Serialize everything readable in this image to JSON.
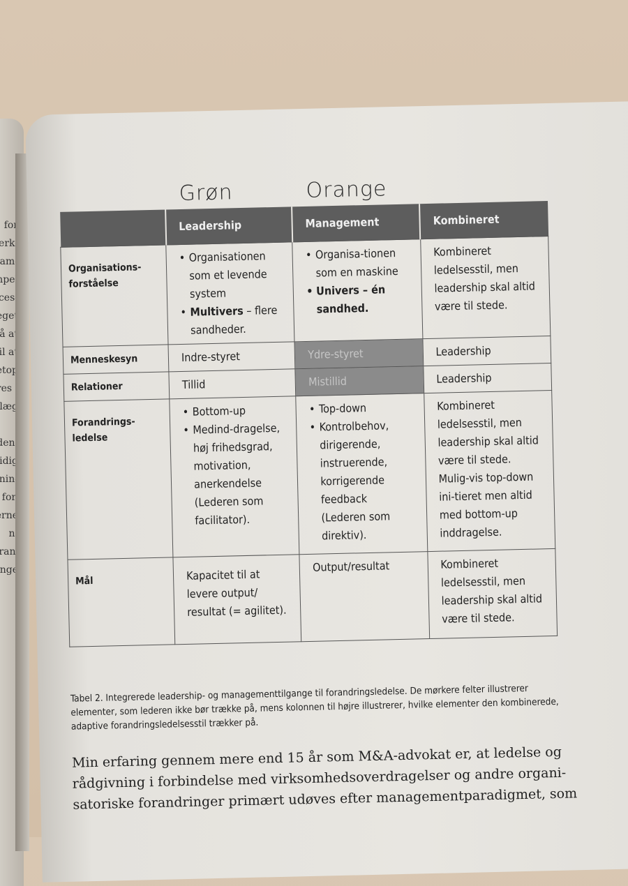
{
  "left_page_fragments": [
    "for",
    "erk-",
    "am-",
    "npel",
    "ces-",
    "eget",
    "på at",
    "il at",
    "etop",
    "res i",
    "olæg",
    "",
    "den.",
    "tidig",
    "nin-",
    "t for,",
    "erne",
    "n.",
    "oran-",
    "ange"
  ],
  "handwriting": {
    "col1": "Grøn",
    "col2": "Orange"
  },
  "table": {
    "headers": [
      "",
      "Leadership",
      "Management",
      "Kombineret"
    ],
    "rows": [
      {
        "label": "Organisations-forståelse",
        "leadership": [
          "Organisationen som et levende system",
          "Multivers – flere sandheder."
        ],
        "leadership_bold": [
          "",
          "Multivers"
        ],
        "management": [
          "Organisa-tionen som en maskine",
          "Univers – én sandhed."
        ],
        "kombineret": "Kombineret ledelsesstil, men leadership skal altid være til stede."
      },
      {
        "label": "Menneskesyn",
        "leadership": "Indre-styret",
        "management": "Ydre-styret",
        "kombineret": "Leadership"
      },
      {
        "label": "Relationer",
        "leadership": "Tillid",
        "management": "Mistillid",
        "kombineret": "Leadership"
      },
      {
        "label": "Forandrings-ledelse",
        "leadership": [
          "Bottom-up",
          "Medind-dragelse, høj frihedsgrad, motivation, anerkendelse (Lederen som facilitator)."
        ],
        "management": [
          "Top-down",
          "Kontrolbehov, dirigerende, instruerende, korrigerende feedback (Lederen som direktiv)."
        ],
        "kombineret": "Kombineret ledelsesstil, men leadership skal altid være til stede. Mulig-vis top-down ini-tieret men altid med bottom-up inddragelse."
      },
      {
        "label": "Mål",
        "leadership": "Kapacitet til at levere output/ resultat (= agilitet).",
        "management": "Output/resultat",
        "kombineret": "Kombineret ledelsesstil, men leadership skal altid være til stede."
      }
    ],
    "dark_cell_color": "#8b8b8b",
    "header_color": "#5d5d5d"
  },
  "caption": "Tabel 2. Integrerede leadership- og managementtilgange til forandringsledelse. De mørkere felter illustrerer elementer, som lederen ikke bør trække på, mens kolonnen til højre illustrerer, hvilke elementer den kombinerede, adaptive forandringsledelsesstil trækker på.",
  "body_text": "Min erfaring gennem mere end 15 år som M&A-advokat er, at ledelse og rådgivning i forbindelse med virksomhedsoverdragelser og andre organi-satoriske forandringer primært udøves efter managementparadigmet, som"
}
